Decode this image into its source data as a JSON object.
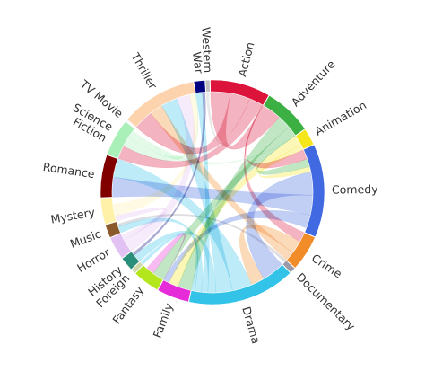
{
  "chart_data": {
    "type": "chord",
    "title": "",
    "genres": [
      {
        "name": "Action",
        "share": 0.082,
        "color": "#dc143c"
      },
      {
        "name": "Adventure",
        "share": 0.066,
        "color": "#3cb043"
      },
      {
        "name": "Animation",
        "share": 0.023,
        "color": "#f5e51b"
      },
      {
        "name": "Comedy",
        "share": 0.127,
        "color": "#4169e1"
      },
      {
        "name": "Crime",
        "share": 0.049,
        "color": "#f28c28"
      },
      {
        "name": "Documentary",
        "share": 0.008,
        "color": "#9a9aa8"
      },
      {
        "name": "Drama",
        "share": 0.147,
        "color": "#33c2e8"
      },
      {
        "name": "Family",
        "share": 0.044,
        "color": "#e62bd8"
      },
      {
        "name": "Fantasy",
        "share": 0.037,
        "color": "#b4e61e"
      },
      {
        "name": "Foreign",
        "share": 0.0065,
        "color": "#cfd8a8"
      },
      {
        "name": "History",
        "share": 0.019,
        "color": "#2a8f7a"
      },
      {
        "name": "Horror",
        "share": 0.031,
        "color": "#e2c2f2"
      },
      {
        "name": "Music",
        "share": 0.018,
        "color": "#8b5a2b"
      },
      {
        "name": "Mystery",
        "share": 0.036,
        "color": "#fff1a8"
      },
      {
        "name": "Romance",
        "share": 0.058,
        "color": "#800000"
      },
      {
        "name": "Science Fiction",
        "share": 0.051,
        "color": "#a8f0b8"
      },
      {
        "name": "TV Movie",
        "share": 0.002,
        "color": "#f5f5f5"
      },
      {
        "name": "Thriller",
        "share": 0.104,
        "color": "#fcd3ad"
      },
      {
        "name": "War",
        "share": 0.015,
        "color": "#000080"
      },
      {
        "name": "Western",
        "share": 0.006,
        "color": "#bfbfbf"
      }
    ],
    "links": [
      [
        "Action",
        "Adventure",
        0.03
      ],
      [
        "Action",
        "Thriller",
        0.03
      ],
      [
        "Action",
        "Science Fiction",
        0.02
      ],
      [
        "Action",
        "Crime",
        0.015
      ],
      [
        "Action",
        "Comedy",
        0.015
      ],
      [
        "Adventure",
        "Family",
        0.02
      ],
      [
        "Adventure",
        "Fantasy",
        0.018
      ],
      [
        "Adventure",
        "Comedy",
        0.012
      ],
      [
        "Animation",
        "Family",
        0.015
      ],
      [
        "Animation",
        "Comedy",
        0.008
      ],
      [
        "Comedy",
        "Drama",
        0.035
      ],
      [
        "Comedy",
        "Romance",
        0.03
      ],
      [
        "Comedy",
        "Family",
        0.02
      ],
      [
        "Crime",
        "Drama",
        0.02
      ],
      [
        "Crime",
        "Thriller",
        0.02
      ],
      [
        "Drama",
        "Romance",
        0.03
      ],
      [
        "Drama",
        "Thriller",
        0.025
      ],
      [
        "Drama",
        "History",
        0.012
      ],
      [
        "Drama",
        "War",
        0.01
      ],
      [
        "Drama",
        "Music",
        0.01
      ],
      [
        "Drama",
        "Foreign",
        0.005
      ],
      [
        "Documentary",
        "Music",
        0.004
      ],
      [
        "Family",
        "Fantasy",
        0.012
      ],
      [
        "Horror",
        "Thriller",
        0.02
      ],
      [
        "Horror",
        "Mystery",
        0.008
      ],
      [
        "Mystery",
        "Thriller",
        0.018
      ],
      [
        "Science Fiction",
        "Thriller",
        0.015
      ],
      [
        "Science Fiction",
        "Adventure",
        0.012
      ],
      [
        "Western",
        "Action",
        0.004
      ],
      [
        "War",
        "History",
        0.004
      ],
      [
        "TV Movie",
        "Drama",
        0.002
      ]
    ]
  }
}
